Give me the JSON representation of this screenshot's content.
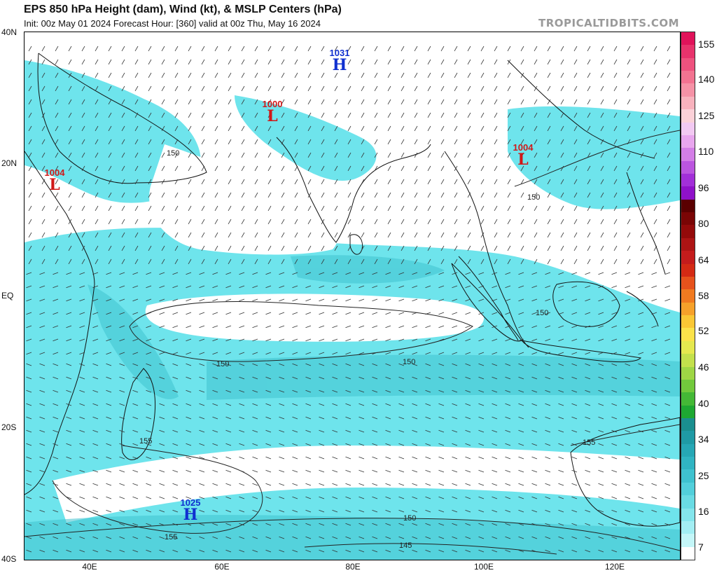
{
  "header": {
    "title": "EPS 850 hPa Height (dam), Wind (kt), & MSLP Centers (hPa)",
    "subtitle": "Init: 00z May 01 2024   Forecast Hour: [360]   valid at 00z Thu, May 16 2024",
    "brand": "TROPICALTIDBITS.COM"
  },
  "axes": {
    "lat_labels": [
      "40N",
      "20N",
      "EQ",
      "20S",
      "40S"
    ],
    "lon_labels": [
      "40E",
      "60E",
      "80E",
      "100E",
      "120E"
    ]
  },
  "pressure_centers": [
    {
      "type": "H",
      "value": "1031",
      "kind": "high"
    },
    {
      "type": "L",
      "value": "1000",
      "kind": "low"
    },
    {
      "type": "L",
      "value": "1004",
      "kind": "low"
    },
    {
      "type": "L",
      "value": "1004",
      "kind": "low"
    },
    {
      "type": "H",
      "value": "1025",
      "kind": "high"
    }
  ],
  "contour_labels": [
    "150",
    "150",
    "150",
    "150",
    "155",
    "155",
    "150",
    "155",
    "145",
    "150"
  ],
  "colorbar": {
    "labels": [
      "155",
      "140",
      "125",
      "110",
      "96",
      "80",
      "64",
      "58",
      "52",
      "46",
      "40",
      "34",
      "25",
      "16",
      "7"
    ],
    "colors": [
      "#e0135a",
      "#e8336c",
      "#ee527e",
      "#f27391",
      "#f592a6",
      "#f8b2bd",
      "#fbd1d8",
      "#f2c9f2",
      "#e8a6ee",
      "#d37ee6",
      "#bb55df",
      "#a22fd8",
      "#8f11c9",
      "#5a0000",
      "#7a0505",
      "#940a0a",
      "#ad1414",
      "#c41c1c",
      "#d42a14",
      "#e6521c",
      "#f07a20",
      "#f6a12a",
      "#fac735",
      "#fbe24a",
      "#e5e84f",
      "#c3e04c",
      "#9ed645",
      "#72c93c",
      "#44b836",
      "#1ea832",
      "#1a8f8f",
      "#1f9aa5",
      "#26a7b5",
      "#30b4c2",
      "#3fc2cf",
      "#52cfdb",
      "#69dbe4",
      "#84e5ec",
      "#a3eef3",
      "#c4f6f8",
      "#ffffff"
    ]
  },
  "colors": {
    "wind_shade": "#5ee0e8",
    "wind_shade_dark": "#2fb0c4",
    "low": "#d01818",
    "high": "#1030d0"
  }
}
